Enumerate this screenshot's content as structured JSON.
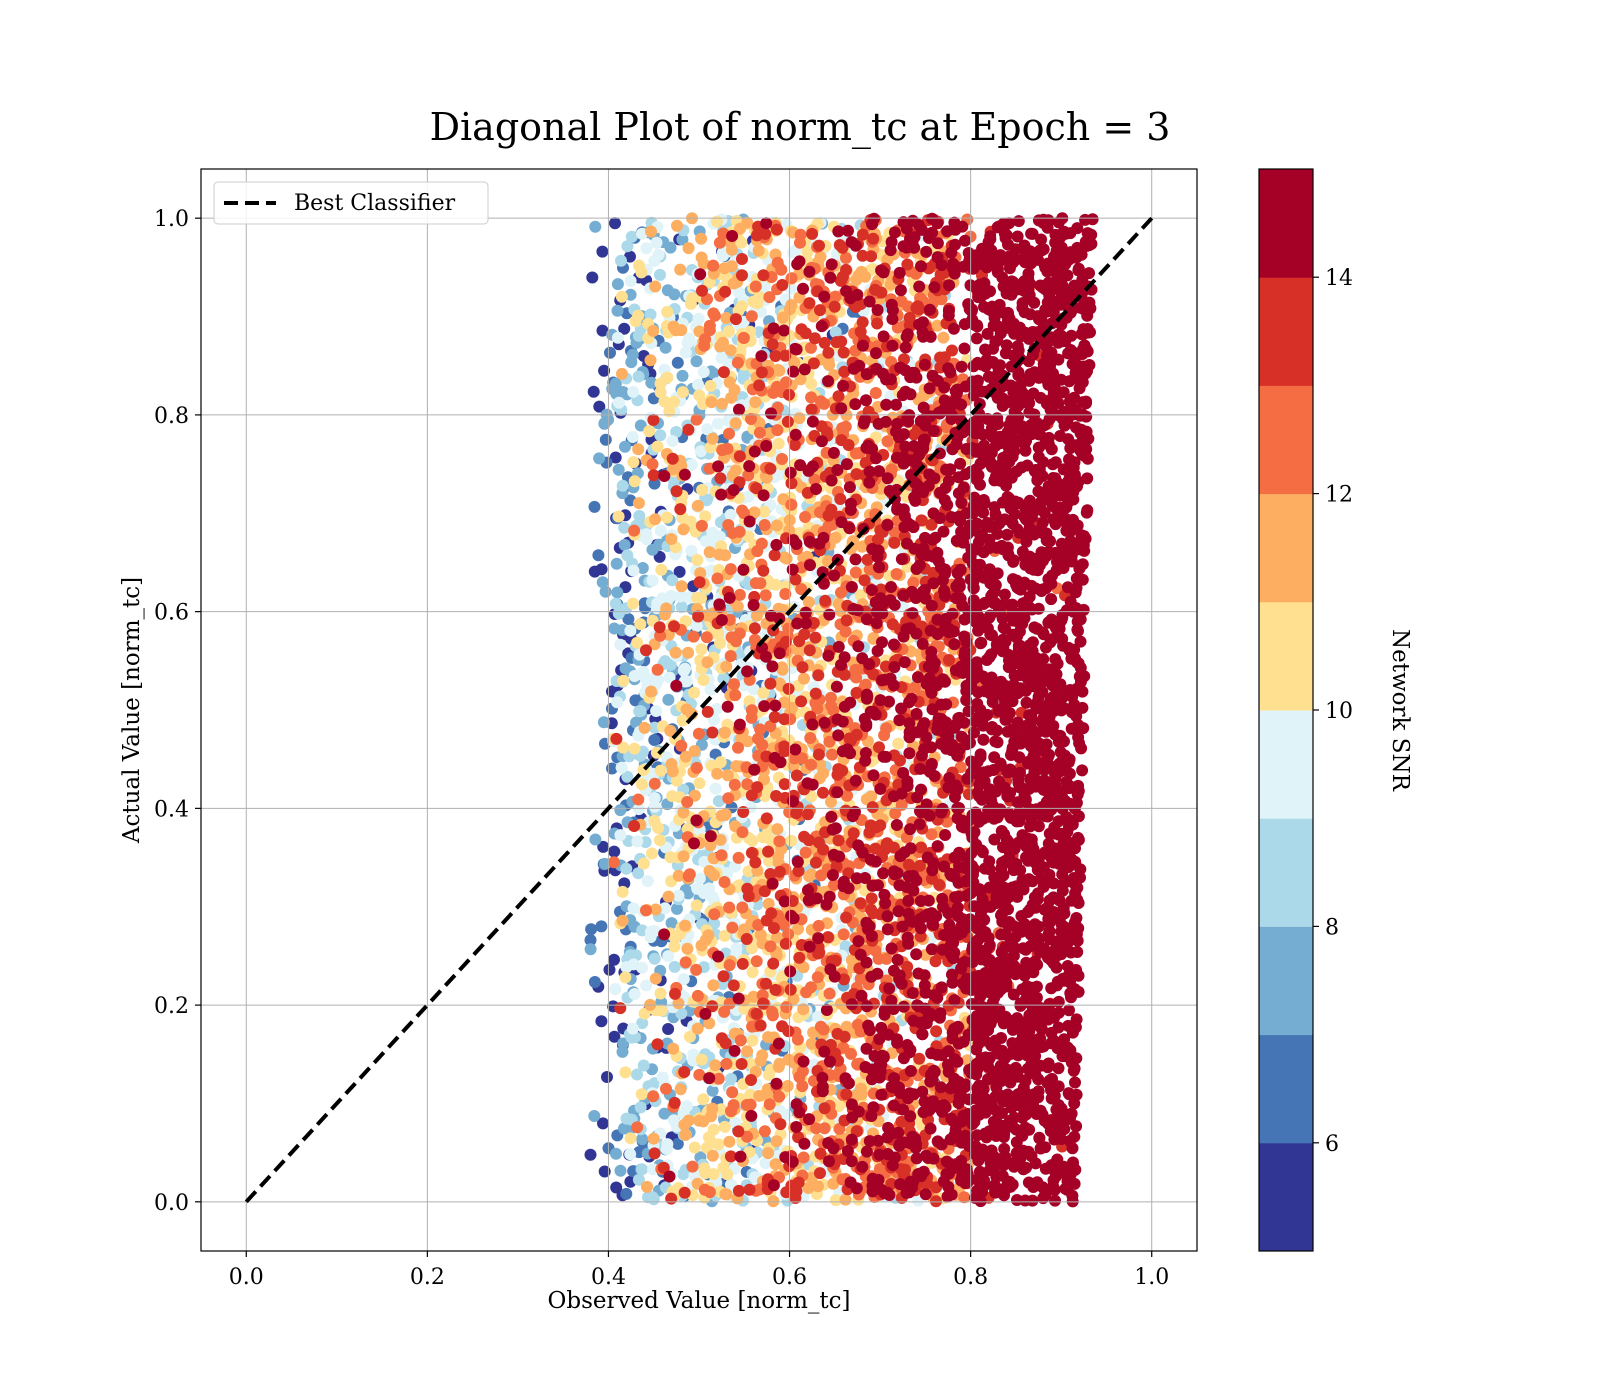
{
  "chart_data": {
    "type": "scatter",
    "title": "Diagonal Plot of norm_tc at Epoch = 3",
    "xlabel": "Observed Value [norm_tc]",
    "ylabel": "Actual Value [norm_tc]",
    "xlim": [
      -0.05,
      1.05
    ],
    "ylim": [
      -0.05,
      1.05
    ],
    "xticks": [
      "0.0",
      "0.2",
      "0.4",
      "0.6",
      "0.8",
      "1.0"
    ],
    "yticks": [
      "0.0",
      "0.2",
      "0.4",
      "0.6",
      "0.8",
      "1.0"
    ],
    "grid": true,
    "legend": {
      "placement": "upper-left",
      "entries": [
        "Best Classifier"
      ]
    },
    "reference_line": {
      "name": "Best Classifier",
      "style": "dashed",
      "color": "#000000",
      "x": [
        0.0,
        1.0
      ],
      "y": [
        0.0,
        1.0
      ]
    },
    "point_cloud": {
      "x_range": [
        0.38,
        0.93
      ],
      "y_range": [
        0.0,
        1.0
      ],
      "color_variable": "Network SNR",
      "trend": "SNR increases with observed value; x > 0.8 is almost entirely SNR >= 14"
    },
    "colorbar": {
      "label": "Network SNR",
      "range": [
        5,
        15
      ],
      "ticks": [
        "6",
        "8",
        "10",
        "12",
        "14"
      ],
      "tick_values": [
        6,
        8,
        10,
        12,
        14
      ],
      "colors": [
        "#313695",
        "#4575b4",
        "#74add1",
        "#abd9e9",
        "#e0f3f8",
        "#fee090",
        "#fdae61",
        "#f46d43",
        "#d73027",
        "#a50026"
      ]
    }
  }
}
